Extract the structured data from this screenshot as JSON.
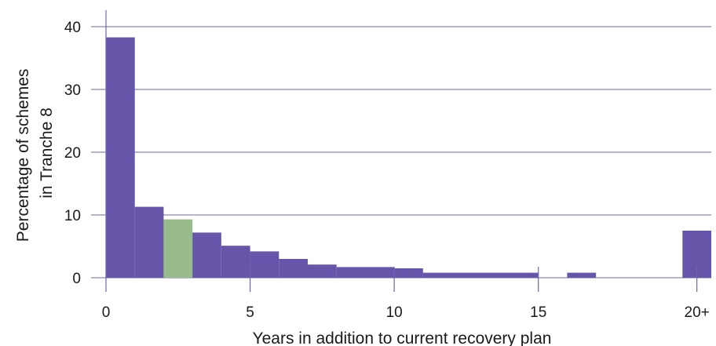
{
  "chart_data": {
    "type": "bar",
    "xlabel": "Years in addition to current recovery plan",
    "ylabel_lines": [
      "Percentage of schemes",
      "in Tranche 8"
    ],
    "xlim": [
      0,
      21
    ],
    "ylim": [
      0,
      40
    ],
    "y_ticks": [
      0,
      10,
      20,
      30,
      40
    ],
    "x_ticks": [
      {
        "value": 0,
        "label": "0"
      },
      {
        "value": 5,
        "label": "5"
      },
      {
        "value": 10,
        "label": "10"
      },
      {
        "value": 15,
        "label": "15"
      },
      {
        "value": 20.5,
        "label": "20+"
      }
    ],
    "grid": true,
    "colors": {
      "bar": "#6655a8",
      "highlight": "#98bb8c",
      "grid": "#6c64b4",
      "axis": "#6c64b4"
    },
    "bins": [
      {
        "x0": 0,
        "x1": 1,
        "value": 38.3
      },
      {
        "x0": 1,
        "x1": 2,
        "value": 11.3
      },
      {
        "x0": 2,
        "x1": 3,
        "value": 9.3,
        "highlight": true
      },
      {
        "x0": 3,
        "x1": 4,
        "value": 7.2
      },
      {
        "x0": 4,
        "x1": 5,
        "value": 5.1
      },
      {
        "x0": 5,
        "x1": 6,
        "value": 4.2
      },
      {
        "x0": 6,
        "x1": 7,
        "value": 3.0
      },
      {
        "x0": 7,
        "x1": 8,
        "value": 2.1
      },
      {
        "x0": 8,
        "x1": 10,
        "value": 1.7
      },
      {
        "x0": 10,
        "x1": 11,
        "value": 1.5
      },
      {
        "x0": 11,
        "x1": 15,
        "value": 0.8
      },
      {
        "x0": 16,
        "x1": 17,
        "value": 0.8
      },
      {
        "x0": 20,
        "x1": 21,
        "value": 7.5
      }
    ]
  }
}
